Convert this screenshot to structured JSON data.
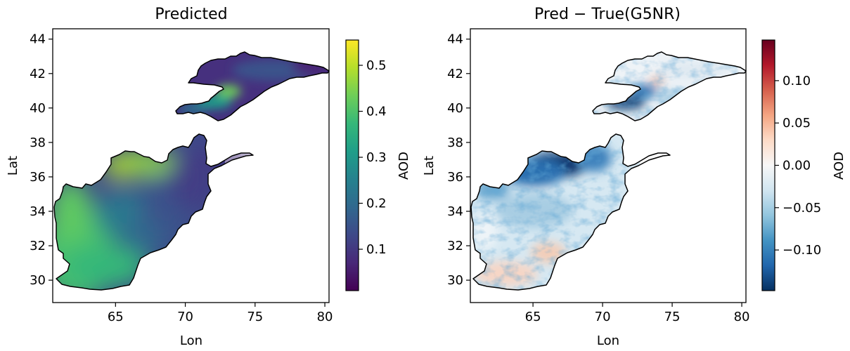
{
  "chart_data": [
    {
      "type": "heatmap",
      "title": "Predicted",
      "xlabel": "Lon",
      "ylabel": "Lat",
      "xlim": [
        60.5,
        80.3
      ],
      "ylim": [
        28.7,
        44.6
      ],
      "xticks": [
        "65",
        "70",
        "75",
        "80"
      ],
      "yticks": [
        "30",
        "32",
        "34",
        "36",
        "38",
        "40",
        "42",
        "44"
      ],
      "colorbar": {
        "label": "AOD",
        "colormap": "viridis",
        "range": [
          0.01,
          0.555
        ],
        "ticks": [
          "0.1",
          "0.2",
          "0.3",
          "0.4",
          "0.5"
        ]
      },
      "regions": [
        {
          "name": "Afghanistan",
          "description": "high AOD (0.35-0.45) in south/west and northern band; low (0.05-0.15) in east/northeast"
        },
        {
          "name": "Kyrgyzstan",
          "description": "mostly low AOD (0.05-0.1), higher (~0.3-0.4) in south-west Fergana area"
        }
      ]
    },
    {
      "type": "heatmap",
      "title": "Pred − True(G5NR)",
      "xlabel": "Lon",
      "ylabel": "Lat",
      "xlim": [
        60.5,
        80.3
      ],
      "ylim": [
        28.7,
        44.6
      ],
      "xticks": [
        "65",
        "70",
        "75",
        "80"
      ],
      "yticks": [
        "30",
        "32",
        "34",
        "36",
        "38",
        "40",
        "42",
        "44"
      ],
      "colorbar": {
        "label": "AOD",
        "colormap": "RdBu_r",
        "range": [
          -0.148,
          0.148
        ],
        "ticks": [
          "0.10",
          "0.05",
          "0.00",
          "−0.05",
          "−0.10"
        ]
      },
      "regions": [
        {
          "name": "Afghanistan",
          "description": "mostly slight negative bias; strong negative (~-0.12) in north; slight positive in south"
        },
        {
          "name": "Kyrgyzstan",
          "description": "near zero with strong negative in south-west Fergana area"
        }
      ]
    }
  ],
  "colors": {
    "viridis": [
      "#440154",
      "#482878",
      "#3e4989",
      "#31688e",
      "#26828e",
      "#1f9e89",
      "#35b779",
      "#6ece58",
      "#b5de2b",
      "#fde725"
    ],
    "rdbu": [
      "#053061",
      "#2166ac",
      "#4393c3",
      "#92c5de",
      "#d1e5f0",
      "#f7f7f7",
      "#fddbc7",
      "#f4a582",
      "#d6604d",
      "#b2182b",
      "#67001f"
    ]
  }
}
